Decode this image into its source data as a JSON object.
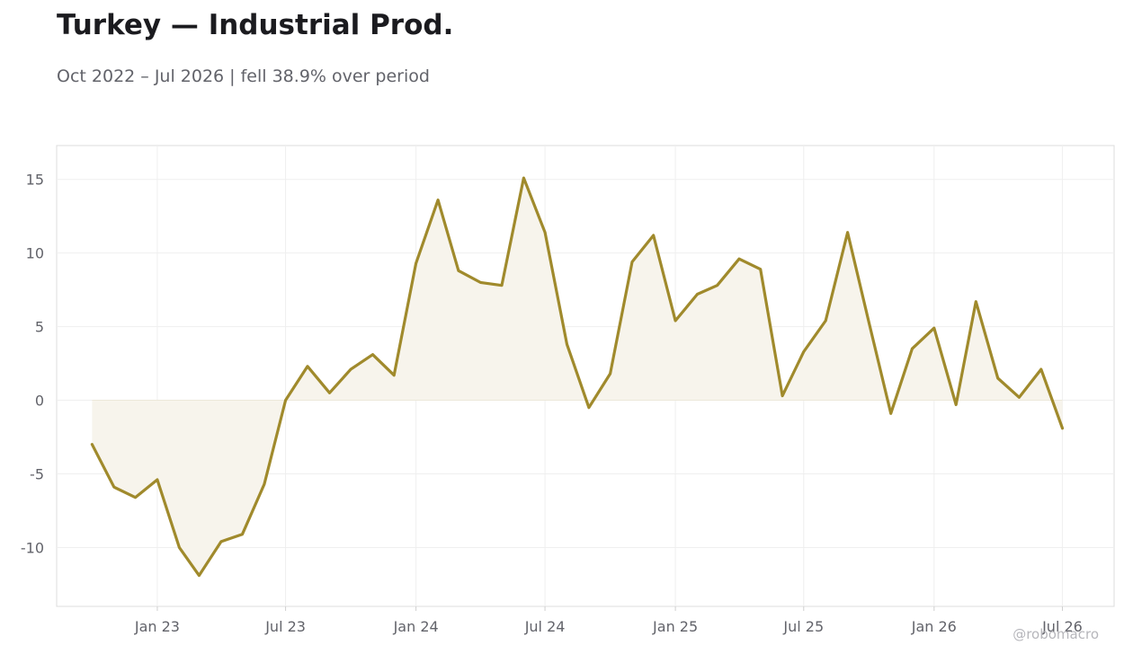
{
  "header": {
    "title": "Turkey — Industrial Prod.",
    "subtitle": "Oct 2022 – Jul 2026 | fell 38.9% over period"
  },
  "watermark": "@robomacro",
  "colors": {
    "line": "#a08a2c",
    "fill": "#f7f4ec",
    "grid": "#efefef",
    "frame": "#dcdcdc",
    "tick_text": "#62636a"
  },
  "chart_data": {
    "type": "area",
    "title": "Turkey — Industrial Prod.",
    "subtitle": "Oct 2022 – Jul 2026 | fell 38.9% over period",
    "xlabel": "",
    "ylabel": "",
    "grid": true,
    "legend": "none",
    "x_ticks": [
      "Jan 23",
      "Jul 23",
      "Jan 24",
      "Jul 24",
      "Jan 25",
      "Jul 25",
      "Jan 26",
      "Jul 26"
    ],
    "y_ticks": [
      15,
      10,
      5,
      0,
      -5,
      -10
    ],
    "ylim": [
      -14,
      17.3
    ],
    "xlim": [
      "2022-08-12",
      "2026-09-12"
    ],
    "series": [
      {
        "x": [
          "2022-10",
          "2022-11",
          "2022-12",
          "2023-01",
          "2023-02",
          "2023-03",
          "2023-04",
          "2023-05",
          "2023-06",
          "2023-07",
          "2023-08",
          "2023-09",
          "2023-10",
          "2023-11",
          "2023-12",
          "2024-01",
          "2024-02",
          "2024-03",
          "2024-04",
          "2024-05",
          "2024-06",
          "2024-07",
          "2024-08",
          "2024-09",
          "2024-10",
          "2024-11",
          "2024-12",
          "2025-01",
          "2025-02",
          "2025-03",
          "2025-04",
          "2025-05",
          "2025-06",
          "2025-07",
          "2025-08",
          "2025-09",
          "2025-10",
          "2025-11",
          "2025-12",
          "2026-01",
          "2026-02",
          "2026-03",
          "2026-04",
          "2026-05",
          "2026-06",
          "2026-07"
        ],
        "values": [
          -3.0,
          -5.9,
          -6.6,
          -5.4,
          -10.0,
          -11.9,
          -9.6,
          -9.1,
          -5.7,
          0.0,
          2.3,
          0.5,
          2.1,
          3.1,
          1.7,
          9.3,
          13.6,
          8.8,
          8.0,
          7.8,
          15.1,
          11.4,
          3.8,
          -0.5,
          1.8,
          9.4,
          11.2,
          5.4,
          7.2,
          7.8,
          9.6,
          8.9,
          0.3,
          3.3,
          5.4,
          11.4,
          5.3,
          -0.9,
          3.5,
          4.9,
          -0.3,
          6.7,
          1.5,
          0.2,
          2.1,
          -1.9
        ]
      }
    ]
  }
}
